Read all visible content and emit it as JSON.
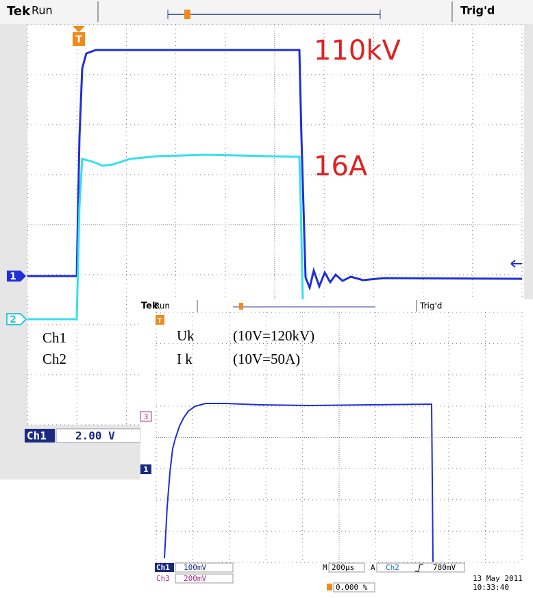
{
  "main_scope": {
    "brand": "Tek",
    "status": "Run",
    "trigger_status": "Trig'd",
    "trigger_marker": "T",
    "annotations": {
      "voltage": "110kV",
      "current": "16A",
      "ch1_name": "Ch1",
      "ch2_name": "Ch2"
    },
    "channel_markers": [
      "1",
      "2"
    ],
    "readout": {
      "channel": "Ch1",
      "scale": "2.00 V"
    }
  },
  "inset_scope": {
    "brand": "Tek",
    "status": "Run",
    "trigger_status": "Trig'd",
    "trigger_marker": "T",
    "annotations": {
      "uk": "Uk",
      "uk_scale": "(10V=120kV)",
      "ik": "I k",
      "ik_scale": "(10V=50A)"
    },
    "channel_markers": [
      "3",
      "1"
    ],
    "readout": {
      "ch1": "Ch1",
      "ch1_scale": "100mV",
      "ch3": "Ch3",
      "ch3_scale": "200mV",
      "timebase_label": "M",
      "timebase": "200µs",
      "trigger_label": "A",
      "trigger_channel": "Ch2",
      "trigger_level": "780mV",
      "trigger_position": "0.000 %"
    },
    "date": "13 May 2011",
    "time": "10:33:40"
  }
}
